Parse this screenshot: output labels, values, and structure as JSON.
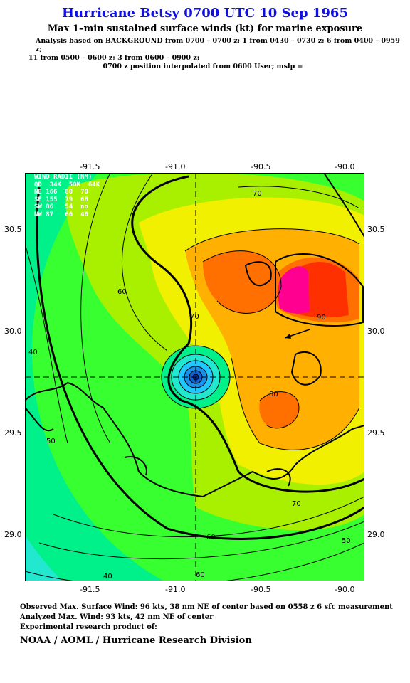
{
  "header": {
    "title": "Hurricane Betsy 0700 UTC 10 Sep 1965",
    "subtitle": "Max 1–min sustained surface winds (kt) for marine exposure",
    "analysis_line1": "Analysis based on  BACKGROUND from 0700 – 0700 z;  1 from 0430 – 0730 z;  6 from 0400 – 0959 z;",
    "analysis_line2": "11 from 0500 – 0600 z;  3 from 0600 – 0900 z;",
    "analysis_line3": "0700 z position interpolated from 0600 User; mslp ="
  },
  "map": {
    "lon_ticks": [
      "-91.5",
      "-91.0",
      "-90.5",
      "-90.0"
    ],
    "lat_ticks": [
      "30.5",
      "30.0",
      "29.5",
      "29.0"
    ],
    "contour_labels": [
      "40",
      "50",
      "60",
      "70",
      "80",
      "90"
    ],
    "wind_radii": {
      "title": "WIND RADII (NM)",
      "header": "QD  34K  50K  64K",
      "rows": [
        {
          "qd": "NE",
          "k34": "166",
          "k50": "80",
          "k64": "70"
        },
        {
          "qd": "SE",
          "k34": "155",
          "k50": "79",
          "k64": "68"
        },
        {
          "qd": "SW",
          "k34": "86",
          "k50": "54",
          "k64": "no"
        },
        {
          "qd": "NW",
          "k34": "87",
          "k50": "66",
          "k64": "46"
        }
      ]
    },
    "colors": {
      "ocean_low": "#1fc8ff",
      "band_40": "#22e8d0",
      "band_50": "#00f08a",
      "band_60": "#38ff30",
      "band_65": "#a8f000",
      "band_70": "#f0f000",
      "band_75": "#ffb000",
      "band_80": "#ff7000",
      "band_85": "#ff3000",
      "band_90": "#ff0090"
    }
  },
  "footer": {
    "observed": "Observed Max. Surface Wind: 96 kts, 38 nm NE of center based on 0558 z 6 sfc measurement",
    "analyzed": "Analyzed Max. Wind: 93 kts, 42 nm NE of center",
    "experimental": "Experimental research product of:",
    "credit": "NOAA / AOML / Hurricane Research Division"
  }
}
